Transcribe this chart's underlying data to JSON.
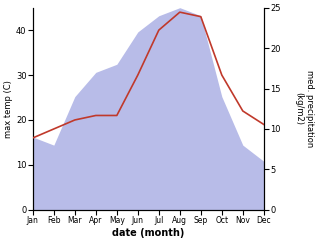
{
  "months": [
    "Jan",
    "Feb",
    "Mar",
    "Apr",
    "May",
    "Jun",
    "Jul",
    "Aug",
    "Sep",
    "Oct",
    "Nov",
    "Dec"
  ],
  "temperature": [
    16,
    18,
    20,
    21,
    21,
    30,
    40,
    44,
    43,
    30,
    22,
    19
  ],
  "precipitation": [
    9,
    8,
    14,
    17,
    18,
    22,
    24,
    25,
    24,
    14,
    8,
    6
  ],
  "temp_color": "#c0392b",
  "precip_color_fill": "#b8bce8",
  "ylabel_left": "max temp (C)",
  "ylabel_right": "med. precipitation\n(kg/m2)",
  "xlabel": "date (month)",
  "ylim_left": [
    0,
    45
  ],
  "ylim_right": [
    0,
    25
  ],
  "yticks_left": [
    0,
    10,
    20,
    30,
    40
  ],
  "yticks_right": [
    0,
    5,
    10,
    15,
    20,
    25
  ],
  "fig_width": 3.18,
  "fig_height": 2.42,
  "dpi": 100
}
